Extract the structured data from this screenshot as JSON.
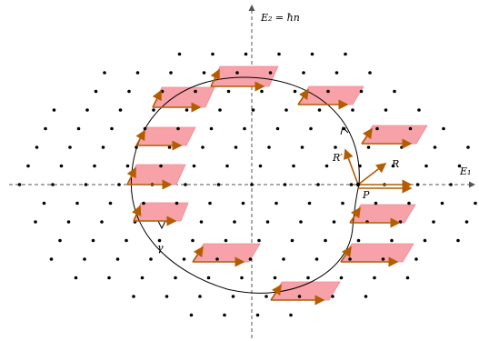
{
  "labels": {
    "e2_axis": "E₂ = ħn",
    "e1_axis": "E₁",
    "curve": "γ",
    "point_p": "P",
    "vec_r": "R",
    "vec_r_prime": "R′"
  },
  "colors": {
    "lattice_point": "#000000",
    "cell_fill": "#f7a2a8",
    "cell_stroke": "#f08a92",
    "vector": "#b35c00",
    "axis": "#555555",
    "curve": "#000000"
  }
}
